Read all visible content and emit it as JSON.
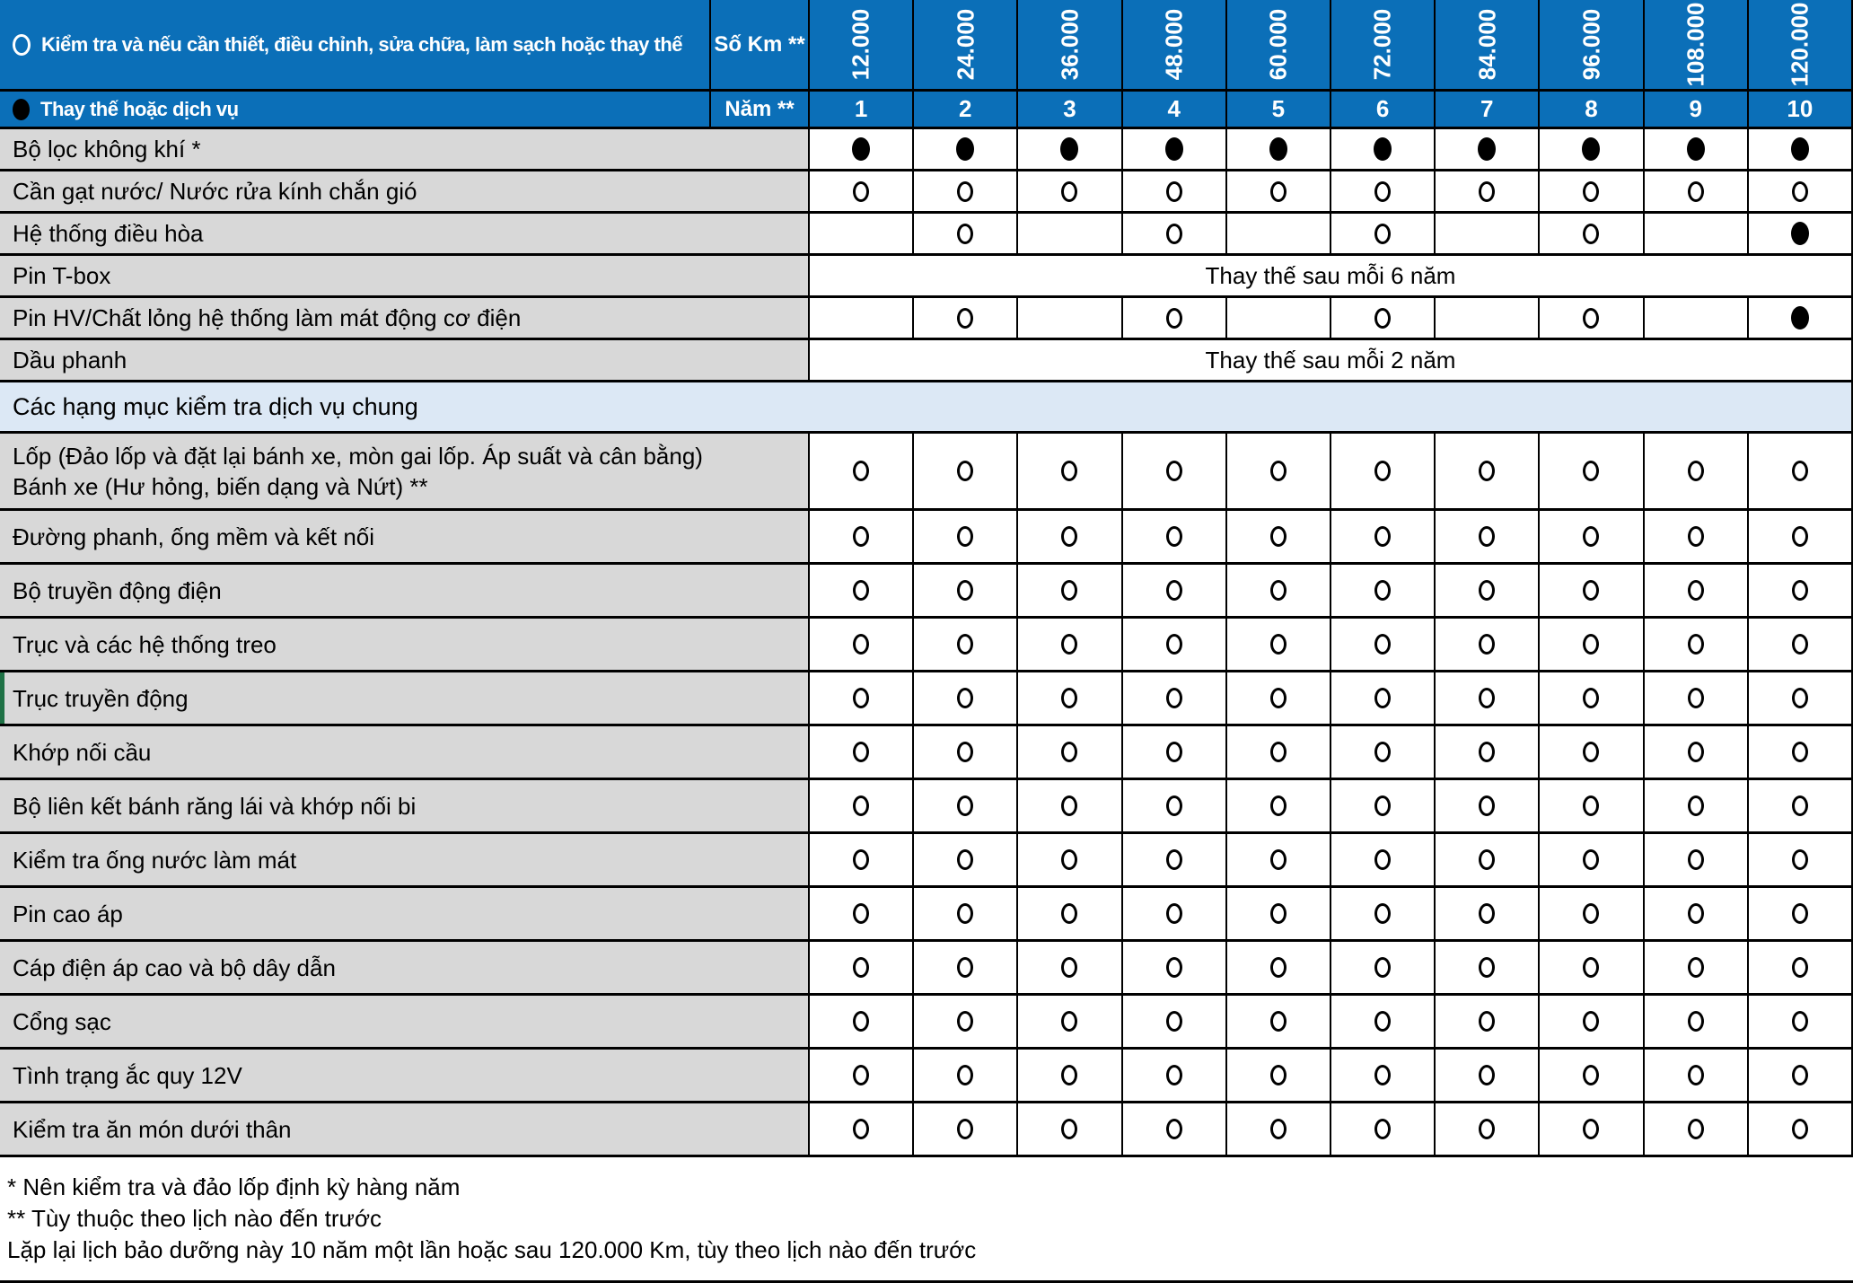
{
  "header": {
    "inspect_legend": "Kiểm tra và nếu cần thiết, điều chỉnh, sửa chữa, làm sạch hoặc thay thế",
    "km_label": "Số Km **",
    "km_values": [
      "12.000",
      "24.000",
      "36.000",
      "48.000",
      "60.000",
      "72.000",
      "84.000",
      "96.000",
      "108.000",
      "120.000"
    ],
    "replace_legend": "Thay thế hoặc dịch vụ",
    "year_label": "Năm **",
    "year_values": [
      "1",
      "2",
      "3",
      "4",
      "5",
      "6",
      "7",
      "8",
      "9",
      "10"
    ]
  },
  "rows": [
    {
      "kind": "service",
      "label": "Bộ lọc không khí *",
      "cells": [
        "filled",
        "filled",
        "filled",
        "filled",
        "filled",
        "filled",
        "filled",
        "filled",
        "filled",
        "filled"
      ]
    },
    {
      "kind": "service",
      "label": "Cần gạt nước/ Nước rửa kính chắn gió",
      "cells": [
        "empty",
        "empty",
        "empty",
        "empty",
        "empty",
        "empty",
        "empty",
        "empty",
        "empty",
        "empty"
      ]
    },
    {
      "kind": "service",
      "label": "Hệ thống điều hòa",
      "cells": [
        "",
        "empty",
        "",
        "empty",
        "",
        "empty",
        "",
        "empty",
        "",
        "filled"
      ]
    },
    {
      "kind": "service",
      "label": "Pin T-box",
      "merged": "Thay thế sau mỗi 6 năm"
    },
    {
      "kind": "service",
      "label": "Pin HV/Chất lỏng hệ thống làm mát động cơ điện",
      "cells": [
        "",
        "empty",
        "",
        "empty",
        "",
        "empty",
        "",
        "empty",
        "",
        "filled"
      ]
    },
    {
      "kind": "service",
      "label": "Dầu phanh",
      "merged": "Thay thế sau mỗi 2 năm"
    },
    {
      "kind": "section",
      "label": "Các hạng mục kiểm tra dịch vụ chung"
    },
    {
      "kind": "tall",
      "label": "Lốp (Đảo lốp và đặt lại bánh xe, mòn gai lốp. Áp suất và cân bằng)",
      "label2": "Bánh xe (Hư hỏng, biến dạng và Nứt) **",
      "cells": [
        "empty",
        "empty",
        "empty",
        "empty",
        "empty",
        "empty",
        "empty",
        "empty",
        "empty",
        "empty"
      ]
    },
    {
      "kind": "general",
      "label": "Đường phanh, ống mềm và kết nối",
      "cells": [
        "empty",
        "empty",
        "empty",
        "empty",
        "empty",
        "empty",
        "empty",
        "empty",
        "empty",
        "empty"
      ]
    },
    {
      "kind": "general",
      "label": "Bộ truyền động điện",
      "cells": [
        "empty",
        "empty",
        "empty",
        "empty",
        "empty",
        "empty",
        "empty",
        "empty",
        "empty",
        "empty"
      ]
    },
    {
      "kind": "general",
      "label": "Trục và các hệ thống treo",
      "cells": [
        "empty",
        "empty",
        "empty",
        "empty",
        "empty",
        "empty",
        "empty",
        "empty",
        "empty",
        "empty"
      ]
    },
    {
      "kind": "general",
      "label": "Trục truyền động",
      "green": true,
      "cells": [
        "empty",
        "empty",
        "empty",
        "empty",
        "empty",
        "empty",
        "empty",
        "empty",
        "empty",
        "empty"
      ]
    },
    {
      "kind": "general",
      "label": "Khớp nối cầu",
      "cells": [
        "empty",
        "empty",
        "empty",
        "empty",
        "empty",
        "empty",
        "empty",
        "empty",
        "empty",
        "empty"
      ]
    },
    {
      "kind": "general",
      "label": "Bộ liên kết bánh răng lái và khớp nối bi",
      "cells": [
        "empty",
        "empty",
        "empty",
        "empty",
        "empty",
        "empty",
        "empty",
        "empty",
        "empty",
        "empty"
      ]
    },
    {
      "kind": "general",
      "label": "Kiểm tra ống nước làm mát",
      "cells": [
        "empty",
        "empty",
        "empty",
        "empty",
        "empty",
        "empty",
        "empty",
        "empty",
        "empty",
        "empty"
      ]
    },
    {
      "kind": "general",
      "label": "Pin cao áp",
      "cells": [
        "empty",
        "empty",
        "empty",
        "empty",
        "empty",
        "empty",
        "empty",
        "empty",
        "empty",
        "empty"
      ]
    },
    {
      "kind": "general",
      "label": "Cáp điện áp cao và bộ dây dẫn",
      "cells": [
        "empty",
        "empty",
        "empty",
        "empty",
        "empty",
        "empty",
        "empty",
        "empty",
        "empty",
        "empty"
      ]
    },
    {
      "kind": "general",
      "label": "Cổng sạc",
      "cells": [
        "empty",
        "empty",
        "empty",
        "empty",
        "empty",
        "empty",
        "empty",
        "empty",
        "empty",
        "empty"
      ]
    },
    {
      "kind": "general",
      "label": "Tình trạng ắc quy 12V",
      "cells": [
        "empty",
        "empty",
        "empty",
        "empty",
        "empty",
        "empty",
        "empty",
        "empty",
        "empty",
        "empty"
      ]
    },
    {
      "kind": "general",
      "label": "Kiểm tra ăn món dưới thân",
      "cells": [
        "empty",
        "empty",
        "empty",
        "empty",
        "empty",
        "empty",
        "empty",
        "empty",
        "empty",
        "empty"
      ]
    }
  ],
  "footnotes": [
    "* Nên kiểm tra và đảo lốp định kỳ hàng năm",
    "** Tùy thuộc theo lịch nào đến trước",
    "Lặp lại lịch bảo dưỡng này 10 năm một lần hoặc sau 120.000 Km, tùy theo lịch nào đến trước"
  ],
  "colors": {
    "header_blue": "#0b6fb8",
    "label_gray": "#d8d8d8",
    "section_light_blue": "#dce8f5",
    "selection_green": "#1e7145",
    "border_black": "#000000"
  }
}
